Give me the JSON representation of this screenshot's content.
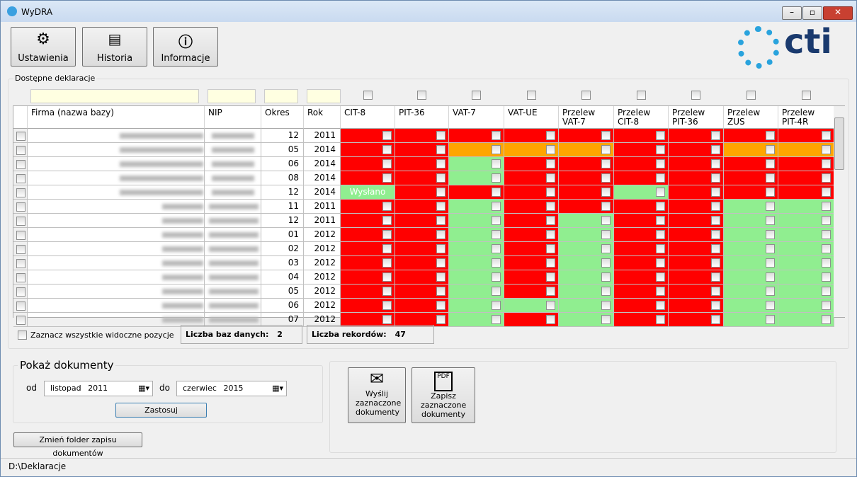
{
  "window": {
    "title": "WyDRA",
    "logo": "cti"
  },
  "toolbar": [
    "Ustawienia",
    "Historia",
    "Informacje"
  ],
  "group_title": "Dostępne deklaracje",
  "table": {
    "columns": [
      "Firma (nazwa bazy)",
      "NIP",
      "Okres",
      "Rok",
      "CIT-8",
      "PIT-36",
      "VAT-7",
      "VAT-UE",
      "Przelew VAT-7",
      "Przelew CIT-8",
      "Przelew PIT-36",
      "Przelew ZUS",
      "Przelew PIT-4R"
    ],
    "rows": [
      {
        "period": "12",
        "year": "2011",
        "cells": [
          {
            "color": "#ff0000"
          },
          {
            "color": "#ff0000"
          },
          {
            "color": "#ff0000"
          },
          {
            "color": "#ff0000"
          },
          {
            "color": "#ff0000"
          },
          {
            "color": "#ff0000"
          },
          {
            "color": "#ff0000"
          },
          {
            "color": "#ff0000"
          },
          {
            "color": "#ff0000"
          }
        ]
      },
      {
        "period": "05",
        "year": "2014",
        "cells": [
          {
            "color": "#ff0000"
          },
          {
            "color": "#ff0000"
          },
          {
            "color": "#ffa500"
          },
          {
            "color": "#ffa500"
          },
          {
            "color": "#ffa500"
          },
          {
            "color": "#ff0000"
          },
          {
            "color": "#ff0000"
          },
          {
            "color": "#ffa500"
          },
          {
            "color": "#ffa500"
          }
        ]
      },
      {
        "period": "06",
        "year": "2014",
        "cells": [
          {
            "color": "#ff0000"
          },
          {
            "color": "#ff0000"
          },
          {
            "color": "#90ee90"
          },
          {
            "color": "#ff0000"
          },
          {
            "color": "#ff0000"
          },
          {
            "color": "#ff0000"
          },
          {
            "color": "#ff0000"
          },
          {
            "color": "#ff0000"
          },
          {
            "color": "#ff0000"
          }
        ]
      },
      {
        "period": "08",
        "year": "2014",
        "cells": [
          {
            "color": "#ff0000"
          },
          {
            "color": "#ff0000"
          },
          {
            "color": "#90ee90"
          },
          {
            "color": "#ff0000"
          },
          {
            "color": "#ff0000"
          },
          {
            "color": "#ff0000"
          },
          {
            "color": "#ff0000"
          },
          {
            "color": "#ff0000"
          },
          {
            "color": "#ff0000"
          }
        ]
      },
      {
        "period": "12",
        "year": "2014",
        "cells": [
          {
            "color": "#90ee90",
            "text": "Wysłano"
          },
          {
            "color": "#ff0000"
          },
          {
            "color": "#ff0000"
          },
          {
            "color": "#ff0000"
          },
          {
            "color": "#ff0000"
          },
          {
            "color": "#90ee90"
          },
          {
            "color": "#ff0000"
          },
          {
            "color": "#ff0000"
          },
          {
            "color": "#ff0000"
          }
        ]
      },
      {
        "period": "11",
        "year": "2011",
        "cells": [
          {
            "color": "#ff0000"
          },
          {
            "color": "#ff0000"
          },
          {
            "color": "#90ee90"
          },
          {
            "color": "#ff0000"
          },
          {
            "color": "#ff0000"
          },
          {
            "color": "#ff0000"
          },
          {
            "color": "#ff0000"
          },
          {
            "color": "#90ee90"
          },
          {
            "color": "#90ee90"
          }
        ]
      },
      {
        "period": "12",
        "year": "2011",
        "cells": [
          {
            "color": "#ff0000"
          },
          {
            "color": "#ff0000"
          },
          {
            "color": "#90ee90"
          },
          {
            "color": "#ff0000"
          },
          {
            "color": "#90ee90"
          },
          {
            "color": "#ff0000"
          },
          {
            "color": "#ff0000"
          },
          {
            "color": "#90ee90"
          },
          {
            "color": "#90ee90"
          }
        ]
      },
      {
        "period": "01",
        "year": "2012",
        "cells": [
          {
            "color": "#ff0000"
          },
          {
            "color": "#ff0000"
          },
          {
            "color": "#90ee90"
          },
          {
            "color": "#ff0000"
          },
          {
            "color": "#90ee90"
          },
          {
            "color": "#ff0000"
          },
          {
            "color": "#ff0000"
          },
          {
            "color": "#90ee90"
          },
          {
            "color": "#90ee90"
          }
        ]
      },
      {
        "period": "02",
        "year": "2012",
        "cells": [
          {
            "color": "#ff0000"
          },
          {
            "color": "#ff0000"
          },
          {
            "color": "#90ee90"
          },
          {
            "color": "#ff0000"
          },
          {
            "color": "#90ee90"
          },
          {
            "color": "#ff0000"
          },
          {
            "color": "#ff0000"
          },
          {
            "color": "#90ee90"
          },
          {
            "color": "#90ee90"
          }
        ]
      },
      {
        "period": "03",
        "year": "2012",
        "cells": [
          {
            "color": "#ff0000"
          },
          {
            "color": "#ff0000"
          },
          {
            "color": "#90ee90"
          },
          {
            "color": "#ff0000"
          },
          {
            "color": "#90ee90"
          },
          {
            "color": "#ff0000"
          },
          {
            "color": "#ff0000"
          },
          {
            "color": "#90ee90"
          },
          {
            "color": "#90ee90"
          }
        ]
      },
      {
        "period": "04",
        "year": "2012",
        "cells": [
          {
            "color": "#ff0000"
          },
          {
            "color": "#ff0000"
          },
          {
            "color": "#90ee90"
          },
          {
            "color": "#ff0000"
          },
          {
            "color": "#90ee90"
          },
          {
            "color": "#ff0000"
          },
          {
            "color": "#ff0000"
          },
          {
            "color": "#90ee90"
          },
          {
            "color": "#90ee90"
          }
        ]
      },
      {
        "period": "05",
        "year": "2012",
        "cells": [
          {
            "color": "#ff0000"
          },
          {
            "color": "#ff0000"
          },
          {
            "color": "#90ee90"
          },
          {
            "color": "#ff0000"
          },
          {
            "color": "#90ee90"
          },
          {
            "color": "#ff0000"
          },
          {
            "color": "#ff0000"
          },
          {
            "color": "#90ee90"
          },
          {
            "color": "#90ee90"
          }
        ]
      },
      {
        "period": "06",
        "year": "2012",
        "cells": [
          {
            "color": "#ff0000"
          },
          {
            "color": "#ff0000"
          },
          {
            "color": "#90ee90"
          },
          {
            "color": "#90ee90"
          },
          {
            "color": "#90ee90"
          },
          {
            "color": "#ff0000"
          },
          {
            "color": "#ff0000"
          },
          {
            "color": "#90ee90"
          },
          {
            "color": "#90ee90"
          }
        ]
      },
      {
        "period": "07",
        "year": "2012",
        "cells": [
          {
            "color": "#ff0000"
          },
          {
            "color": "#ff0000"
          },
          {
            "color": "#90ee90"
          },
          {
            "color": "#ff0000"
          },
          {
            "color": "#90ee90"
          },
          {
            "color": "#ff0000"
          },
          {
            "color": "#ff0000"
          },
          {
            "color": "#90ee90"
          },
          {
            "color": "#90ee90"
          }
        ]
      }
    ]
  },
  "footer": {
    "select_all": "Zaznacz wszystkie widoczne pozycje",
    "db_count_label": "Liczba baz danych:",
    "db_count": "2",
    "records_label": "Liczba rekordów:",
    "records": "47"
  },
  "documents": {
    "title": "Pokaż dokumenty",
    "from": "od",
    "from_month": "listopad",
    "from_year": "2011",
    "to": "do",
    "to_month": "czerwiec",
    "to_year": "2015",
    "apply": "Zastosuj",
    "change_folder": "Zmień folder zapisu dokumentów"
  },
  "actions": [
    "Wyślij zaznaczone dokumenty",
    "Zapisz zaznaczone dokumenty"
  ],
  "status": "D:\\Deklaracje"
}
